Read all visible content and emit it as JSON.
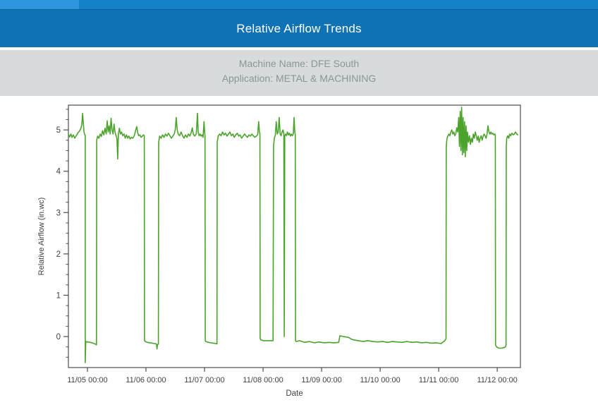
{
  "header": {
    "title": "Relative Airflow Trends"
  },
  "machine_info": {
    "machine_name": "Machine Name: DFE South",
    "application": "Application: METAL & MACHINING"
  },
  "colors": {
    "header_blue": "#0e72b5",
    "strip_blue": "#1480c7",
    "tab_blue": "#2d96dc",
    "info_bar_gray": "#d8dbdc",
    "info_text_gray": "#8d9397",
    "line_green": "#4ca32c",
    "axis_gray": "#4d4d4d",
    "tick_text": "#404040"
  },
  "chart_data": {
    "type": "line",
    "title": "",
    "xlabel": "Date",
    "ylabel": "Relative Airflow (in.wc)",
    "x_unit": "hours since 11/05 00:00",
    "xlim": [
      -7.8,
      177.5
    ],
    "ylim": [
      -0.75,
      5.6
    ],
    "grid": false,
    "legend": "none",
    "line_color": "#4ca32c",
    "axis_color": "#4d4d4d",
    "tick_text_color": "#404040",
    "y_ticks": [
      0,
      1,
      2,
      3,
      4,
      5
    ],
    "y_minor_step": 0.25,
    "x_ticks": {
      "hours": [
        0,
        24,
        48,
        72,
        96,
        120,
        144,
        168
      ],
      "labels": [
        "11/05 00:00",
        "11/06 00:00",
        "11/07 00:00",
        "11/08 00:00",
        "11/09 00:00",
        "11/10 00:00",
        "11/11 00:00",
        "11/12 00:00"
      ]
    },
    "series": [
      {
        "name": "Relative Airflow",
        "points": [
          [
            -7.8,
            4.9
          ],
          [
            -7.3,
            4.83
          ],
          [
            -6.8,
            4.9
          ],
          [
            -6.3,
            4.82
          ],
          [
            -5.8,
            4.88
          ],
          [
            -5.2,
            4.8
          ],
          [
            -4.6,
            4.86
          ],
          [
            -4.0,
            4.92
          ],
          [
            -3.4,
            4.96
          ],
          [
            -2.8,
            5.02
          ],
          [
            -2.3,
            5.12
          ],
          [
            -2.0,
            5.4
          ],
          [
            -1.7,
            5.18
          ],
          [
            -1.4,
            4.95
          ],
          [
            -1.1,
            4.88
          ],
          [
            -0.9,
            4.87
          ],
          [
            -0.9,
            -0.63
          ],
          [
            -0.7,
            -0.12
          ],
          [
            0.2,
            -0.13
          ],
          [
            1.2,
            -0.14
          ],
          [
            2.2,
            -0.16
          ],
          [
            3.2,
            -0.18
          ],
          [
            3.7,
            -0.2
          ],
          [
            3.8,
            4.75
          ],
          [
            4.2,
            4.85
          ],
          [
            4.7,
            4.8
          ],
          [
            5.2,
            4.9
          ],
          [
            5.7,
            4.84
          ],
          [
            6.2,
            4.98
          ],
          [
            6.7,
            4.88
          ],
          [
            7.2,
            5.04
          ],
          [
            7.7,
            4.9
          ],
          [
            8.1,
            5.22
          ],
          [
            8.5,
            4.95
          ],
          [
            8.9,
            5.1
          ],
          [
            9.3,
            4.9
          ],
          [
            9.7,
            5.28
          ],
          [
            10.1,
            5.0
          ],
          [
            10.5,
            4.9
          ],
          [
            10.9,
            5.14
          ],
          [
            11.3,
            4.95
          ],
          [
            11.7,
            4.86
          ],
          [
            12.1,
            4.8
          ],
          [
            12.4,
            4.3
          ],
          [
            12.7,
            4.9
          ],
          [
            13.1,
            5.04
          ],
          [
            13.5,
            4.9
          ],
          [
            14.0,
            4.95
          ],
          [
            14.5,
            4.86
          ],
          [
            15.0,
            4.9
          ],
          [
            15.5,
            4.8
          ],
          [
            16.0,
            4.88
          ],
          [
            16.5,
            4.8
          ],
          [
            17.0,
            4.85
          ],
          [
            17.5,
            4.78
          ],
          [
            18.0,
            4.82
          ],
          [
            18.6,
            4.8
          ],
          [
            19.2,
            4.86
          ],
          [
            19.8,
            5.0
          ],
          [
            20.2,
            5.08
          ],
          [
            20.6,
            4.94
          ],
          [
            21.0,
            4.86
          ],
          [
            21.5,
            4.88
          ],
          [
            22.0,
            4.82
          ],
          [
            22.5,
            4.85
          ],
          [
            23.0,
            4.88
          ],
          [
            23.3,
            4.86
          ],
          [
            23.4,
            -0.1
          ],
          [
            23.7,
            -0.12
          ],
          [
            24.6,
            -0.14
          ],
          [
            25.6,
            -0.15
          ],
          [
            26.6,
            -0.16
          ],
          [
            27.6,
            -0.17
          ],
          [
            28.3,
            -0.18
          ],
          [
            28.5,
            -0.3
          ],
          [
            28.7,
            -0.2
          ],
          [
            29.1,
            -0.18
          ],
          [
            29.2,
            4.7
          ],
          [
            29.6,
            4.85
          ],
          [
            30.2,
            4.8
          ],
          [
            30.8,
            4.88
          ],
          [
            31.4,
            4.82
          ],
          [
            32.0,
            4.9
          ],
          [
            32.6,
            4.85
          ],
          [
            33.2,
            4.92
          ],
          [
            33.8,
            4.86
          ],
          [
            34.4,
            4.8
          ],
          [
            35.0,
            4.85
          ],
          [
            35.6,
            4.9
          ],
          [
            36.0,
            5.0
          ],
          [
            36.4,
            5.3
          ],
          [
            36.8,
            5.0
          ],
          [
            37.2,
            4.9
          ],
          [
            37.8,
            4.86
          ],
          [
            38.4,
            4.95
          ],
          [
            39.0,
            4.86
          ],
          [
            39.6,
            4.8
          ],
          [
            40.2,
            4.88
          ],
          [
            40.8,
            4.82
          ],
          [
            41.4,
            4.9
          ],
          [
            42.0,
            4.85
          ],
          [
            42.6,
            4.95
          ],
          [
            43.0,
            5.05
          ],
          [
            43.4,
            4.9
          ],
          [
            44.0,
            4.85
          ],
          [
            44.6,
            4.9
          ],
          [
            45.1,
            5.4
          ],
          [
            45.4,
            4.95
          ],
          [
            45.8,
            4.86
          ],
          [
            46.2,
            4.9
          ],
          [
            46.6,
            4.85
          ],
          [
            47.0,
            4.88
          ],
          [
            47.4,
            4.82
          ],
          [
            47.8,
            5.2
          ],
          [
            48.1,
            4.9
          ],
          [
            48.2,
            4.86
          ],
          [
            48.3,
            -0.1
          ],
          [
            48.6,
            -0.12
          ],
          [
            49.6,
            -0.14
          ],
          [
            50.6,
            -0.15
          ],
          [
            51.6,
            -0.16
          ],
          [
            52.6,
            -0.17
          ],
          [
            53.1,
            -0.18
          ],
          [
            53.2,
            4.7
          ],
          [
            53.6,
            4.85
          ],
          [
            54.2,
            4.9
          ],
          [
            54.8,
            4.86
          ],
          [
            55.4,
            4.95
          ],
          [
            56.0,
            4.88
          ],
          [
            56.6,
            4.92
          ],
          [
            57.2,
            4.85
          ],
          [
            57.8,
            4.9
          ],
          [
            58.4,
            4.95
          ],
          [
            59.0,
            4.86
          ],
          [
            59.6,
            4.9
          ],
          [
            60.2,
            4.82
          ],
          [
            60.8,
            4.88
          ],
          [
            61.4,
            4.92
          ],
          [
            62.0,
            4.85
          ],
          [
            62.6,
            4.88
          ],
          [
            63.2,
            4.8
          ],
          [
            63.8,
            4.85
          ],
          [
            64.4,
            4.9
          ],
          [
            65.0,
            4.86
          ],
          [
            65.6,
            4.82
          ],
          [
            66.2,
            4.88
          ],
          [
            66.8,
            4.85
          ],
          [
            67.4,
            4.9
          ],
          [
            68.0,
            4.86
          ],
          [
            68.6,
            4.82
          ],
          [
            69.2,
            4.85
          ],
          [
            69.8,
            4.88
          ],
          [
            70.2,
            5.2
          ],
          [
            70.5,
            4.95
          ],
          [
            70.7,
            4.9
          ],
          [
            70.8,
            -0.05
          ],
          [
            71.1,
            -0.08
          ],
          [
            72.1,
            -0.1
          ],
          [
            73.6,
            -0.1
          ],
          [
            75.1,
            -0.1
          ],
          [
            76.1,
            -0.1
          ],
          [
            76.3,
            4.6
          ],
          [
            76.6,
            4.8
          ],
          [
            77.0,
            4.86
          ],
          [
            77.4,
            5.2
          ],
          [
            77.8,
            4.9
          ],
          [
            78.2,
            4.95
          ],
          [
            78.6,
            5.3
          ],
          [
            79.0,
            4.9
          ],
          [
            79.4,
            4.86
          ],
          [
            79.8,
            4.95
          ],
          [
            80.2,
            5.0
          ],
          [
            80.5,
            4.9
          ],
          [
            80.7,
            0.0
          ],
          [
            80.9,
            4.85
          ],
          [
            81.2,
            4.9
          ],
          [
            81.6,
            4.86
          ],
          [
            82.0,
            4.95
          ],
          [
            82.4,
            4.88
          ],
          [
            82.8,
            4.92
          ],
          [
            83.2,
            4.85
          ],
          [
            83.6,
            4.9
          ],
          [
            84.0,
            4.86
          ],
          [
            84.4,
            4.9
          ],
          [
            84.7,
            5.3
          ],
          [
            85.0,
            4.95
          ],
          [
            85.2,
            4.9
          ],
          [
            85.3,
            -0.1
          ],
          [
            85.6,
            -0.12
          ],
          [
            87,
            -0.1
          ],
          [
            89,
            -0.14
          ],
          [
            91,
            -0.12
          ],
          [
            93,
            -0.15
          ],
          [
            95,
            -0.13
          ],
          [
            97,
            -0.15
          ],
          [
            99,
            -0.14
          ],
          [
            101,
            -0.15
          ],
          [
            103,
            -0.14
          ],
          [
            103.5,
            0.02
          ],
          [
            105,
            0.0
          ],
          [
            107,
            -0.02
          ],
          [
            107.8,
            -0.05
          ],
          [
            109,
            -0.08
          ],
          [
            111,
            -0.1
          ],
          [
            113,
            -0.12
          ],
          [
            115,
            -0.1
          ],
          [
            117,
            -0.12
          ],
          [
            119,
            -0.13
          ],
          [
            121,
            -0.12
          ],
          [
            123,
            -0.14
          ],
          [
            125,
            -0.12
          ],
          [
            127,
            -0.13
          ],
          [
            129,
            -0.14
          ],
          [
            131,
            -0.12
          ],
          [
            133,
            -0.14
          ],
          [
            135,
            -0.13
          ],
          [
            137,
            -0.15
          ],
          [
            139,
            -0.14
          ],
          [
            141,
            -0.16
          ],
          [
            143,
            -0.15
          ],
          [
            145,
            -0.17
          ],
          [
            146.5,
            -0.1
          ],
          [
            147.0,
            -0.05
          ],
          [
            147.1,
            4.6
          ],
          [
            147.4,
            4.8
          ],
          [
            147.8,
            4.86
          ],
          [
            148.2,
            4.9
          ],
          [
            148.6,
            4.86
          ],
          [
            149.0,
            4.95
          ],
          [
            149.4,
            5.0
          ],
          [
            149.8,
            4.9
          ],
          [
            150.2,
            4.95
          ],
          [
            150.6,
            4.86
          ],
          [
            151.0,
            4.9
          ],
          [
            151.4,
            5.05
          ],
          [
            151.8,
            4.95
          ],
          [
            152.2,
            5.3
          ],
          [
            152.5,
            4.6
          ],
          [
            152.8,
            5.45
          ],
          [
            153.1,
            4.5
          ],
          [
            153.4,
            5.55
          ],
          [
            153.7,
            4.4
          ],
          [
            154.0,
            5.3
          ],
          [
            154.3,
            4.45
          ],
          [
            154.6,
            5.2
          ],
          [
            154.9,
            4.35
          ],
          [
            155.2,
            5.1
          ],
          [
            155.5,
            4.5
          ],
          [
            155.8,
            4.95
          ],
          [
            156.2,
            4.7
          ],
          [
            156.6,
            4.86
          ],
          [
            157.0,
            4.65
          ],
          [
            157.4,
            4.8
          ],
          [
            157.8,
            4.7
          ],
          [
            158.2,
            4.9
          ],
          [
            158.6,
            4.8
          ],
          [
            159.0,
            4.95
          ],
          [
            159.4,
            4.86
          ],
          [
            159.8,
            4.75
          ],
          [
            160.2,
            4.85
          ],
          [
            160.6,
            4.7
          ],
          [
            161.0,
            4.8
          ],
          [
            161.4,
            4.86
          ],
          [
            161.8,
            4.75
          ],
          [
            162.2,
            4.85
          ],
          [
            162.6,
            4.9
          ],
          [
            163.0,
            4.86
          ],
          [
            163.4,
            4.8
          ],
          [
            163.8,
            4.9
          ],
          [
            164.2,
            5.1
          ],
          [
            164.6,
            4.95
          ],
          [
            165.0,
            4.9
          ],
          [
            165.4,
            4.95
          ],
          [
            165.8,
            4.9
          ],
          [
            166.2,
            4.92
          ],
          [
            166.6,
            4.88
          ],
          [
            167.0,
            4.9
          ],
          [
            167.2,
            4.88
          ],
          [
            167.3,
            -0.2
          ],
          [
            167.7,
            -0.25
          ],
          [
            168.6,
            -0.28
          ],
          [
            169.6,
            -0.28
          ],
          [
            170.6,
            -0.27
          ],
          [
            171.4,
            -0.25
          ],
          [
            171.6,
            -0.2
          ],
          [
            171.7,
            4.6
          ],
          [
            171.9,
            4.8
          ],
          [
            172.3,
            4.86
          ],
          [
            172.7,
            4.8
          ],
          [
            173.1,
            4.9
          ],
          [
            173.5,
            4.86
          ],
          [
            174.0,
            4.92
          ],
          [
            174.5,
            4.88
          ],
          [
            175.0,
            4.9
          ],
          [
            175.5,
            4.95
          ],
          [
            176.0,
            4.9
          ],
          [
            176.4,
            4.88
          ]
        ]
      }
    ]
  }
}
